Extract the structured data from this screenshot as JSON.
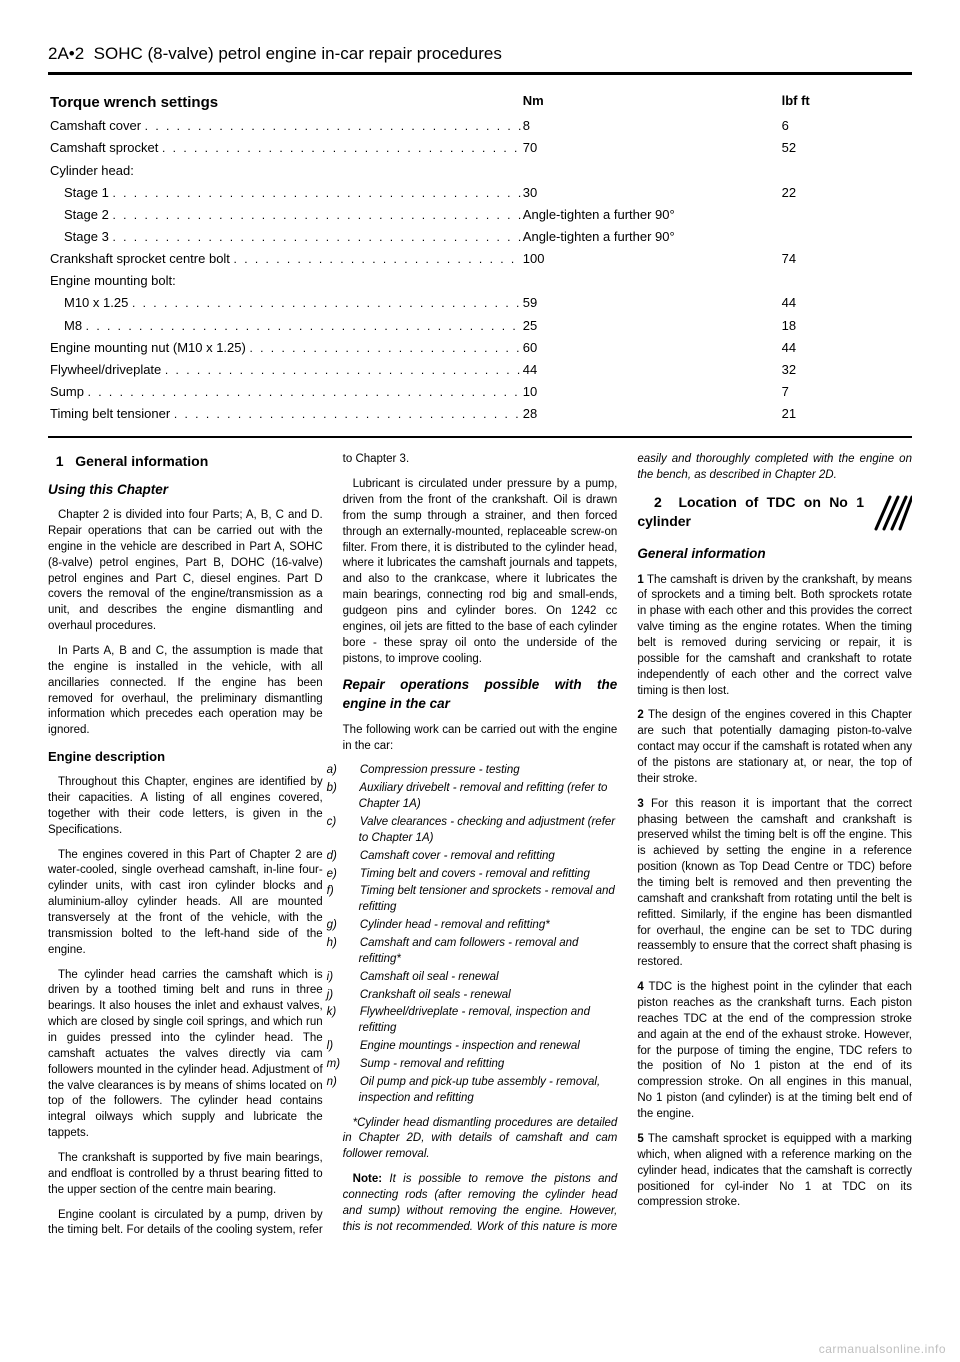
{
  "header": {
    "page_ref": "2A•2",
    "title_rest": "SOHC (8-valve) petrol engine in-car repair procedures"
  },
  "torque": {
    "heading": "Torque wrench settings",
    "col_nm": "Nm",
    "col_lbf": "lbf ft",
    "rows": [
      {
        "label": "Camshaft cover",
        "nm": "8",
        "lbf": "6",
        "indent": 0,
        "leader": true
      },
      {
        "label": "Camshaft sprocket",
        "nm": "70",
        "lbf": "52",
        "indent": 0,
        "leader": true
      },
      {
        "label": "Cylinder head:",
        "nm": "",
        "lbf": "",
        "indent": 0,
        "leader": false
      },
      {
        "label": "Stage 1",
        "nm": "30",
        "lbf": "22",
        "indent": 1,
        "leader": true
      },
      {
        "label": "Stage 2",
        "nm": "Angle-tighten a further 90°",
        "lbf": "",
        "indent": 1,
        "leader": true
      },
      {
        "label": "Stage 3",
        "nm": "Angle-tighten a further 90°",
        "lbf": "",
        "indent": 1,
        "leader": true
      },
      {
        "label": "Crankshaft sprocket centre bolt",
        "nm": "100",
        "lbf": "74",
        "indent": 0,
        "leader": true
      },
      {
        "label": "Engine mounting bolt:",
        "nm": "",
        "lbf": "",
        "indent": 0,
        "leader": false
      },
      {
        "label": "M10 x 1.25",
        "nm": "59",
        "lbf": "44",
        "indent": 1,
        "leader": true
      },
      {
        "label": "M8",
        "nm": "25",
        "lbf": "18",
        "indent": 1,
        "leader": true
      },
      {
        "label": "Engine mounting nut (M10 x 1.25)",
        "nm": "60",
        "lbf": "44",
        "indent": 0,
        "leader": true
      },
      {
        "label": "Flywheel/driveplate",
        "nm": "44",
        "lbf": "32",
        "indent": 0,
        "leader": true
      },
      {
        "label": "Sump",
        "nm": "10",
        "lbf": "7",
        "indent": 0,
        "leader": true
      },
      {
        "label": "Timing belt tensioner",
        "nm": "28",
        "lbf": "21",
        "indent": 0,
        "leader": true
      }
    ]
  },
  "section1": {
    "num": "1",
    "title": "General information",
    "using_heading": "Using this Chapter",
    "using_p1": "Chapter 2 is divided into four Parts; A, B, C and D. Repair operations that can be carried out with the engine in the vehicle are described in Part A, SOHC (8-valve) petrol engines, Part B, DOHC (16-valve) petrol engines and Part C, diesel engines. Part D covers the removal of the engine/transmission as a unit, and describes the engine dismantling and overhaul procedures.",
    "using_p2": "In Parts A, B and C, the assumption is made that the engine is installed in the vehicle, with all ancillaries connected. If the engine has been removed for overhaul, the preliminary dismantling information which precedes each operation may be ignored.",
    "desc_heading": "Engine description",
    "desc_p1": "Throughout this Chapter, engines are identified by their capacities. A listing of all engines covered, together with their code letters, is given in the Specifications.",
    "desc_p2": "The engines covered in this Part of Chapter 2 are water-cooled, single overhead camshaft, in-line four-cylinder units, with cast iron cylinder blocks and aluminium-alloy cylinder heads. All are mounted transversely at the front of the vehicle, with the transmission bolted to the left-hand side of the engine.",
    "desc_p3": "The cylinder head carries the camshaft which is driven by a toothed timing belt and runs in three bearings. It also houses the inlet and exhaust valves, which are closed by single coil springs, and which run in guides pressed into the cylinder head. The camshaft actuates the valves directly via cam followers mounted in the cylinder head. Adjustment of the valve clearances is by means of shims located on top of the followers. The cylinder head contains integral oilways which supply and lubricate the tappets.",
    "desc_p4": "The crankshaft is supported by five main bearings, and endfloat is controlled by a thrust bearing fitted to the upper section of the centre main bearing.",
    "desc_p5": "Engine coolant is circulated by a pump, driven by the timing belt. For details of the cooling system, refer to Chapter 3.",
    "desc_p6": "Lubricant is circulated under pressure by a pump, driven from the front of the crankshaft. Oil is drawn from the sump through a strainer, and then forced through an externally-mounted, replaceable screw-on filter. From there, it is distributed to the cylinder head, where it lubricates the camshaft journals and tappets, and also to the crankcase, where it lubricates the main bearings, connecting rod big and small-ends, gudgeon pins and cylinder bores. On 1242 cc engines, oil jets are fitted to the base of each cylinder bore - these spray oil onto the underside of the pistons, to improve cooling.",
    "repair_heading": "Repair operations possible with the engine in the car",
    "repair_intro": "The following work can be carried out with the engine in the car:",
    "ops": [
      {
        "lbl": "a)",
        "txt": "Compression pressure - testing"
      },
      {
        "lbl": "b)",
        "txt": "Auxiliary drivebelt - removal and refitting (refer to Chapter 1A)"
      },
      {
        "lbl": "c)",
        "txt": "Valve clearances - checking and adjustment (refer to Chapter 1A)"
      },
      {
        "lbl": "d)",
        "txt": "Camshaft cover - removal and refitting"
      },
      {
        "lbl": "e)",
        "txt": "Timing belt and covers - removal and refitting"
      },
      {
        "lbl": "f)",
        "txt": "Timing belt tensioner and sprockets - removal and refitting"
      },
      {
        "lbl": "g)",
        "txt": "Cylinder head - removal and refitting*"
      },
      {
        "lbl": "h)",
        "txt": "Camshaft and cam followers - removal and refitting*"
      },
      {
        "lbl": "i)",
        "txt": "Camshaft oil seal - renewal"
      },
      {
        "lbl": "j)",
        "txt": "Crankshaft oil seals - renewal"
      },
      {
        "lbl": "k)",
        "txt": "Flywheel/driveplate - removal, inspection and refitting"
      },
      {
        "lbl": "l)",
        "txt": "Engine mountings - inspection and renewal"
      },
      {
        "lbl": "m)",
        "txt": "Sump - removal and refitting"
      },
      {
        "lbl": "n)",
        "txt": "Oil pump and pick-up tube assembly - removal, inspection and refitting"
      }
    ],
    "after_ops": "*Cylinder head dismantling procedures are detailed in Chapter 2D, with details of camshaft and cam follower removal.",
    "note_label": "Note:",
    "note_text": " It is possible to remove the pistons and connecting rods (after removing the cylinder head and sump) without removing the engine. However, this is not recommended. Work of this nature is more easily and thoroughly completed with the engine on the bench, as described in Chapter 2D."
  },
  "section2": {
    "num": "2",
    "title": "Location of TDC on No 1 cylinder",
    "gi_heading": "General information",
    "p1_num": "1",
    "p1": "The camshaft is driven by the crankshaft, by means of sprockets and a timing belt. Both sprockets rotate in phase with each other and this provides the correct valve timing as the engine rotates. When the timing belt is removed during servicing or repair, it is possible for the camshaft and crankshaft to rotate independently of each other and the correct valve timing is then lost.",
    "p2_num": "2",
    "p2": "The design of the engines covered in this Chapter are such that potentially damaging piston-to-valve contact may occur if the camshaft is rotated when any of the pistons are stationary at, or near, the top of their stroke.",
    "p3_num": "3",
    "p3": "For this reason it is important that the correct phasing between the camshaft and crankshaft is preserved whilst the timing belt is off the engine. This is achieved by setting the engine in a reference position (known as Top Dead Centre or TDC) before the timing belt is removed and then preventing the camshaft and crankshaft from rotating until the belt is refitted. Similarly, if the engine has been dismantled for overhaul, the engine can be set to TDC during reassembly to ensure that the correct shaft phasing is restored.",
    "p4_num": "4",
    "p4": "TDC is the highest point in the cylinder that each piston reaches as the crankshaft turns. Each piston reaches TDC at the end of the compression stroke and again at the end of the exhaust stroke. However, for the purpose of timing the engine, TDC refers to the position of No 1 piston at the end of its compression stroke. On all engines in this manual, No 1 piston (and cylinder) is at the timing belt end of the engine.",
    "p5_num": "5",
    "p5": "The camshaft sprocket is equipped with a marking which, when aligned with a reference marking on the cylinder head, indicates that the camshaft is correctly positioned for cyl-inder No 1 at TDC on its compression stroke."
  },
  "watermark": "carmanualsonline.info"
}
